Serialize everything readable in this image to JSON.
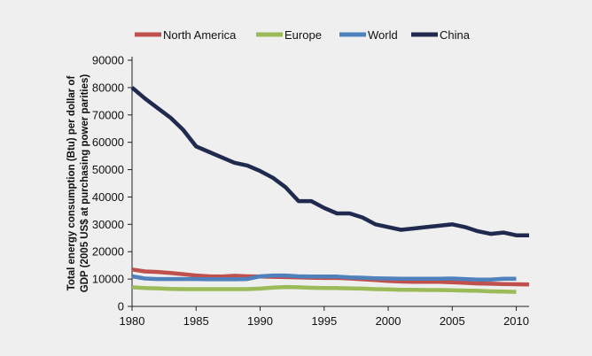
{
  "chart_data": {
    "type": "line",
    "title": "",
    "xlabel": "",
    "ylabel_lines": [
      "Total energy consumption (Btu) per dollar of",
      "GDP (2005 US$ at purchasing power parities)"
    ],
    "xlim": [
      1980,
      2011
    ],
    "ylim": [
      0,
      90000
    ],
    "x_ticks": [
      1980,
      1985,
      1990,
      1995,
      2000,
      2005,
      2010
    ],
    "y_ticks": [
      0,
      10000,
      20000,
      30000,
      40000,
      50000,
      60000,
      70000,
      80000,
      90000
    ],
    "legend_position": "top",
    "series": [
      {
        "name": "North America",
        "color": "#c0504d",
        "x": [
          1980,
          1981,
          1982,
          1983,
          1984,
          1985,
          1986,
          1987,
          1988,
          1989,
          1990,
          1991,
          1992,
          1993,
          1994,
          1995,
          1996,
          1997,
          1998,
          1999,
          2000,
          2001,
          2002,
          2003,
          2004,
          2005,
          2006,
          2007,
          2008,
          2009,
          2010,
          2011
        ],
        "values": [
          13500,
          12800,
          12600,
          12200,
          11800,
          11300,
          11000,
          10900,
          11200,
          11000,
          10900,
          10800,
          10700,
          10600,
          10500,
          10400,
          10400,
          10200,
          9900,
          9600,
          9300,
          9100,
          9000,
          9000,
          9000,
          8800,
          8600,
          8400,
          8300,
          8200,
          8100,
          8000
        ]
      },
      {
        "name": "Europe",
        "color": "#9bbb59",
        "x": [
          1980,
          1981,
          1982,
          1983,
          1984,
          1985,
          1986,
          1987,
          1988,
          1989,
          1990,
          1991,
          1992,
          1993,
          1994,
          1995,
          1996,
          1997,
          1998,
          1999,
          2000,
          2001,
          2002,
          2003,
          2004,
          2005,
          2006,
          2007,
          2008,
          2009,
          2010
        ],
        "values": [
          7000,
          6700,
          6600,
          6400,
          6300,
          6300,
          6300,
          6300,
          6300,
          6300,
          6500,
          6900,
          7100,
          7000,
          6800,
          6700,
          6700,
          6600,
          6500,
          6300,
          6200,
          6100,
          6100,
          6000,
          6000,
          5900,
          5800,
          5700,
          5500,
          5400,
          5300
        ]
      },
      {
        "name": "World",
        "color": "#4f81bd",
        "x": [
          1980,
          1981,
          1982,
          1983,
          1984,
          1985,
          1986,
          1987,
          1988,
          1989,
          1990,
          1991,
          1992,
          1993,
          1994,
          1995,
          1996,
          1997,
          1998,
          1999,
          2000,
          2001,
          2002,
          2003,
          2004,
          2005,
          2006,
          2007,
          2008,
          2009,
          2010
        ],
        "values": [
          11000,
          10200,
          10000,
          10000,
          10000,
          10000,
          9900,
          9900,
          9900,
          10000,
          11000,
          11300,
          11300,
          11000,
          10900,
          10900,
          10900,
          10600,
          10500,
          10300,
          10200,
          10100,
          10100,
          10100,
          10100,
          10200,
          10000,
          9800,
          9800,
          10100,
          10100
        ]
      },
      {
        "name": "China",
        "color": "#1f2a4e",
        "x": [
          1980,
          1981,
          1982,
          1983,
          1984,
          1985,
          1986,
          1987,
          1988,
          1989,
          1990,
          1991,
          1992,
          1993,
          1994,
          1995,
          1996,
          1997,
          1998,
          1999,
          2000,
          2001,
          2002,
          2003,
          2004,
          2005,
          2006,
          2007,
          2008,
          2009,
          2010,
          2011
        ],
        "values": [
          80000,
          76000,
          72500,
          69000,
          64500,
          58500,
          56500,
          54500,
          52500,
          51500,
          49500,
          47000,
          43500,
          38500,
          38500,
          36000,
          34000,
          34000,
          32500,
          30000,
          29000,
          28000,
          28500,
          29000,
          29500,
          30000,
          29000,
          27500,
          26500,
          27000,
          26000,
          26000
        ]
      }
    ]
  }
}
